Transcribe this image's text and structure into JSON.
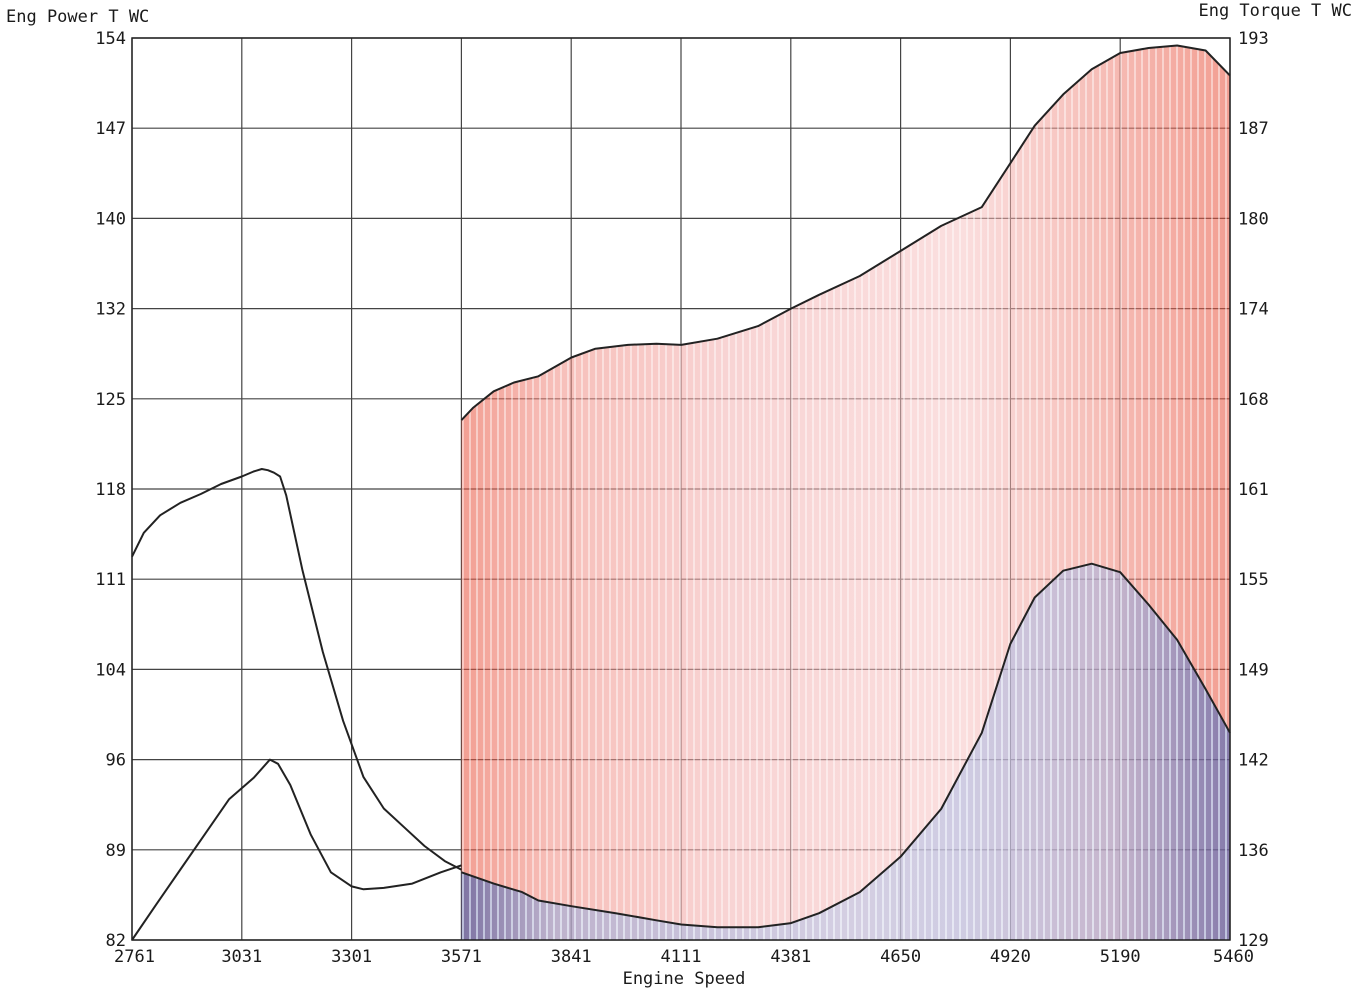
{
  "chart_data": {
    "type": "line",
    "xlabel": "Engine Speed",
    "ylabel_left": "Eng Power T WC",
    "ylabel_right": "Eng Torque T WC",
    "x_ticks": [
      "2761",
      "3031",
      "3301",
      "3571",
      "3841",
      "4111",
      "4381",
      "4650",
      "4920",
      "5190",
      "5460"
    ],
    "y_left_ticks": [
      "82",
      "89",
      "96",
      "104",
      "111",
      "118",
      "125",
      "132",
      "140",
      "147",
      "154"
    ],
    "y_right_ticks": [
      "129",
      "136",
      "142",
      "149",
      "155",
      "161",
      "168",
      "174",
      "180",
      "187",
      "193"
    ],
    "xlim": [
      2761,
      5460
    ],
    "ylim_left": [
      82,
      154
    ],
    "ylim_right": [
      129,
      193
    ],
    "grid": true,
    "series": [
      {
        "axis": "left",
        "color": "#222222",
        "x": [
          2761,
          2790,
          2830,
          2880,
          2930,
          2980,
          3031,
          3060,
          3080,
          3095,
          3110,
          3125,
          3140,
          3180,
          3230,
          3280,
          3330,
          3380,
          3430,
          3480,
          3530,
          3571
        ],
        "values": [
          112.6,
          114.5,
          115.9,
          116.9,
          117.6,
          118.4,
          119.0,
          119.4,
          119.6,
          119.5,
          119.3,
          119.0,
          117.5,
          111.5,
          105.0,
          99.5,
          95.0,
          92.5,
          91.0,
          89.5,
          88.3,
          87.6
        ]
      },
      {
        "axis": "right",
        "color": "#222222",
        "x": [
          2761,
          2820,
          2880,
          2940,
          3000,
          3060,
          3100,
          3120,
          3150,
          3200,
          3250,
          3301,
          3330,
          3380,
          3450,
          3520,
          3571
        ],
        "values": [
          129.0,
          131.5,
          134.0,
          136.5,
          139.0,
          140.5,
          141.8,
          141.5,
          140.0,
          136.5,
          133.8,
          132.8,
          132.6,
          132.7,
          133.0,
          133.8,
          134.3
        ]
      },
      {
        "axis": "left",
        "color": "#e8503a",
        "x": [
          3571,
          3600,
          3650,
          3700,
          3760,
          3841,
          3900,
          3980,
          4050,
          4111,
          4200,
          4300,
          4381,
          4450,
          4550,
          4650,
          4750,
          4850,
          4920,
          4980,
          5050,
          5120,
          5190,
          5260,
          5330,
          5400,
          5460
        ],
        "values": [
          123.5,
          124.5,
          125.8,
          126.5,
          127.0,
          128.5,
          129.2,
          129.5,
          129.6,
          129.5,
          130.0,
          131.0,
          132.4,
          133.5,
          135.0,
          137.0,
          139.0,
          140.5,
          144.0,
          147.0,
          149.5,
          151.5,
          152.8,
          153.2,
          153.4,
          153.0,
          151.0
        ]
      },
      {
        "axis": "right",
        "color": "#2e5fbf",
        "x": [
          3571,
          3650,
          3720,
          3760,
          3841,
          3950,
          4050,
          4111,
          4200,
          4300,
          4381,
          4450,
          4550,
          4650,
          4750,
          4850,
          4920,
          4980,
          5050,
          5120,
          5190,
          5260,
          5330,
          5400,
          5460
        ],
        "values": [
          133.8,
          133.0,
          132.4,
          131.8,
          131.4,
          130.9,
          130.4,
          130.1,
          129.9,
          129.9,
          130.2,
          130.9,
          132.4,
          134.9,
          138.3,
          143.7,
          150.0,
          153.3,
          155.2,
          155.7,
          155.1,
          152.8,
          150.3,
          146.8,
          143.7
        ]
      }
    ]
  }
}
